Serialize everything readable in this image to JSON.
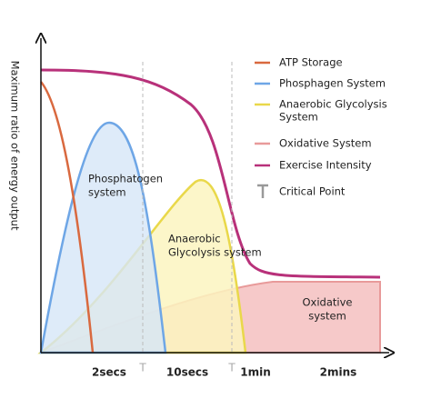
{
  "axes": {
    "y_label": "Maximum ratio of energy output",
    "x_ticks": [
      "2secs",
      "10secs",
      "1min",
      "2mins"
    ],
    "critical_marker": "T"
  },
  "legend": [
    {
      "label": [
        "ATP Storage"
      ]
    },
    {
      "label": [
        "Phosphagen System"
      ]
    },
    {
      "label": [
        "Anaerobic Glycolysis",
        "System"
      ]
    },
    {
      "label": [
        "Oxidative System"
      ]
    },
    {
      "label": [
        "Exercise Intensity"
      ]
    },
    {
      "label": [
        "Critical Point"
      ]
    }
  ],
  "annotations": [
    {
      "label": [
        "Phosphatogen",
        "system"
      ]
    },
    {
      "label": [
        "Anaerobic",
        "Glycolysis system"
      ]
    },
    {
      "label": [
        "Oxidative",
        "system"
      ]
    }
  ]
}
